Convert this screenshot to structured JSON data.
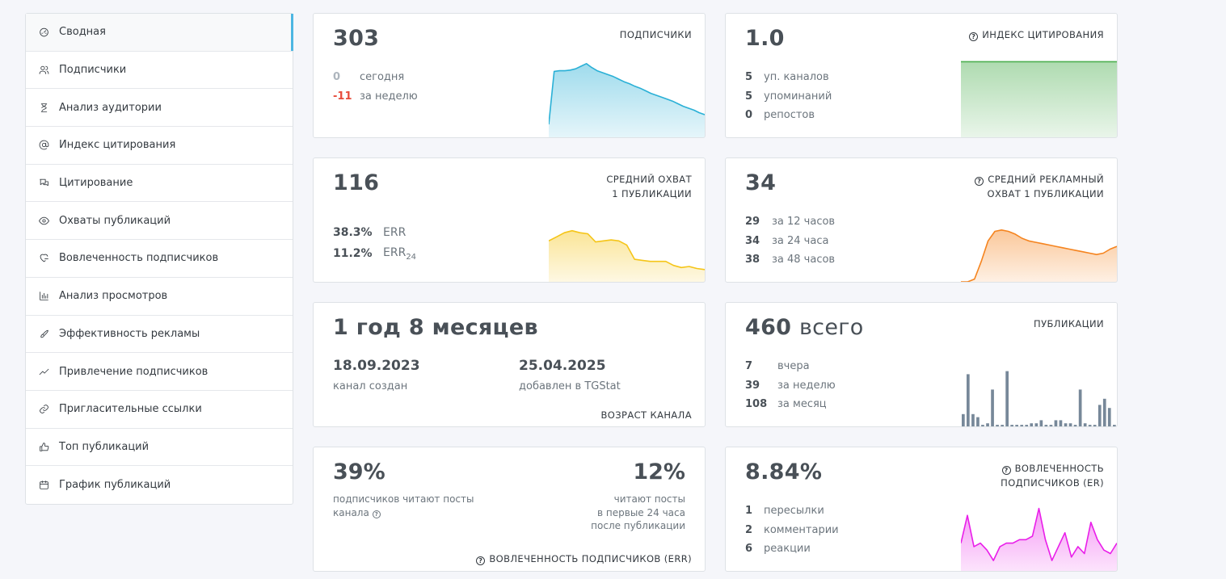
{
  "sidebar": {
    "items": [
      {
        "label": "Сводная",
        "icon": "dashboard-icon"
      },
      {
        "label": "Подписчики",
        "icon": "users-icon"
      },
      {
        "label": "Анализ аудитории",
        "icon": "hourglass-icon"
      },
      {
        "label": "Индекс цитирования",
        "icon": "at-icon"
      },
      {
        "label": "Цитирование",
        "icon": "chat-icon"
      },
      {
        "label": "Охваты публикаций",
        "icon": "eye-icon"
      },
      {
        "label": "Вовлеченность подписчиков",
        "icon": "heart-icon"
      },
      {
        "label": "Анализ просмотров",
        "icon": "bar-chart-icon"
      },
      {
        "label": "Эффективность рекламы",
        "icon": "rocket-icon"
      },
      {
        "label": "Привлечение подписчиков",
        "icon": "trending-icon"
      },
      {
        "label": "Пригласительные ссылки",
        "icon": "link-icon"
      },
      {
        "label": "Топ публикаций",
        "icon": "thumbs-up-icon"
      },
      {
        "label": "График публикаций",
        "icon": "calendar-icon"
      }
    ]
  },
  "subscribers": {
    "value": "303",
    "title": "ПОДПИСЧИКИ",
    "rows": [
      {
        "n": "0",
        "l": "сегодня"
      },
      {
        "n": "-11",
        "l": "за неделю"
      }
    ],
    "color": "#2ab0d6"
  },
  "citation": {
    "value": "1.0",
    "title": "ИНДЕКС ЦИТИРОВАНИЯ",
    "help": "?",
    "rows": [
      {
        "n": "5",
        "l": "уп. каналов"
      },
      {
        "n": "5",
        "l": "упоминаний"
      },
      {
        "n": "0",
        "l": "репостов"
      }
    ],
    "color": "#4caf50"
  },
  "reach": {
    "value": "116",
    "title1": "СРЕДНИЙ ОХВАТ",
    "title2": "1 ПУБЛИКАЦИИ",
    "err": {
      "n": "38.3%",
      "l": "ERR"
    },
    "err24": {
      "n": "11.2%",
      "l": "ERR",
      "sub": "24"
    },
    "color": "#f5c518"
  },
  "ad_reach": {
    "value": "34",
    "title1": "СРЕДНИЙ РЕКЛАМНЫЙ",
    "title2": "ОХВАТ 1 ПУБЛИКАЦИИ",
    "help": "?",
    "rows": [
      {
        "n": "29",
        "l": "за 12 часов"
      },
      {
        "n": "34",
        "l": "за 24 часа"
      },
      {
        "n": "38",
        "l": "за 48 часов"
      }
    ],
    "color": "#f5841f"
  },
  "age": {
    "value": "1 год 8 месяцев",
    "created_date": "18.09.2023",
    "created_label": "канал создан",
    "added_date": "25.04.2025",
    "added_label": "добавлен в TGStat",
    "title": "ВОЗРАСТ КАНАЛА"
  },
  "posts": {
    "value": "460",
    "unit": "всего",
    "title": "ПУБЛИКАЦИИ",
    "rows": [
      {
        "n": "7",
        "l": "вчера"
      },
      {
        "n": "39",
        "l": "за неделю"
      },
      {
        "n": "108",
        "l": "за месяц"
      }
    ],
    "color": "#778899"
  },
  "engagement_err": {
    "left_value": "39%",
    "left_text1": "подписчиков читают посты",
    "left_text2": "канала",
    "help": "?",
    "right_value": "12%",
    "right_text1": "читают посты",
    "right_text2": "в первые 24 часа",
    "right_text3": "после публикации",
    "title": "ВОВЛЕЧЕННОСТЬ ПОДПИСЧИКОВ (ERR)"
  },
  "engagement_er": {
    "value": "8.84%",
    "title1": "ВОВЛЕЧЕННОСТЬ",
    "title2": "ПОДПИСЧИКОВ (ER)",
    "help": "?",
    "rows": [
      {
        "n": "1",
        "l": "пересылки"
      },
      {
        "n": "2",
        "l": "комментарии"
      },
      {
        "n": "6",
        "l": "реакции"
      }
    ],
    "color": "#e91ee9"
  },
  "chart_data": [
    {
      "type": "area",
      "title": "ПОДПИСЧИКИ",
      "values": [
        220,
        302,
        303,
        303,
        304,
        306,
        310,
        314,
        308,
        303,
        300,
        297,
        294,
        290,
        286,
        283,
        279,
        276,
        272,
        268,
        265,
        262,
        259,
        256,
        252,
        248,
        245,
        242,
        238,
        235
      ],
      "ylim": [
        200,
        320
      ]
    },
    {
      "type": "area",
      "title": "ИНДЕКС ЦИТИРОВАНИЯ",
      "values": [
        1.0,
        1.0
      ],
      "ylim": [
        0,
        1.1
      ]
    },
    {
      "type": "area",
      "title": "СРЕДНИЙ ОХВАТ 1 ПУБЛИКАЦИИ",
      "values": [
        120,
        124,
        128,
        130,
        128,
        127,
        119,
        120,
        121,
        120,
        116,
        102,
        101,
        100,
        100,
        100,
        96,
        94,
        95,
        93,
        92
      ],
      "ylim": [
        80,
        140
      ]
    },
    {
      "type": "area",
      "title": "СРЕДНИЙ РЕКЛАМНЫЙ ОХВАТ 1 ПУБЛИКАЦИИ",
      "values": [
        0,
        0,
        2,
        15,
        30,
        37,
        38,
        37,
        35,
        32,
        30,
        29,
        28,
        27,
        26,
        25,
        24,
        23,
        22,
        21,
        20,
        21,
        24,
        26
      ],
      "ylim": [
        0,
        45
      ]
    },
    {
      "type": "bar",
      "title": "ПУБЛИКАЦИИ",
      "values": [
        4,
        17,
        4,
        3,
        0.5,
        1,
        12,
        0.5,
        0.5,
        18,
        0.5,
        0.5,
        0.5,
        0.5,
        1,
        1,
        2,
        0.5,
        0.5,
        2,
        2,
        1,
        1,
        0.5,
        12,
        1,
        0.5,
        0.5,
        7,
        9,
        6,
        0.5
      ],
      "ylim": [
        0,
        20
      ]
    },
    {
      "type": "area",
      "title": "ВОВЛЕЧЕННОСТЬ ПОДПИСЧИКОВ (ER)",
      "values": [
        8,
        16,
        7,
        8,
        6,
        3,
        7,
        8,
        8,
        9,
        9,
        10,
        18,
        9,
        3,
        7,
        11,
        4,
        7,
        5,
        14,
        9,
        6,
        5,
        8
      ],
      "ylim": [
        0,
        20
      ]
    }
  ]
}
